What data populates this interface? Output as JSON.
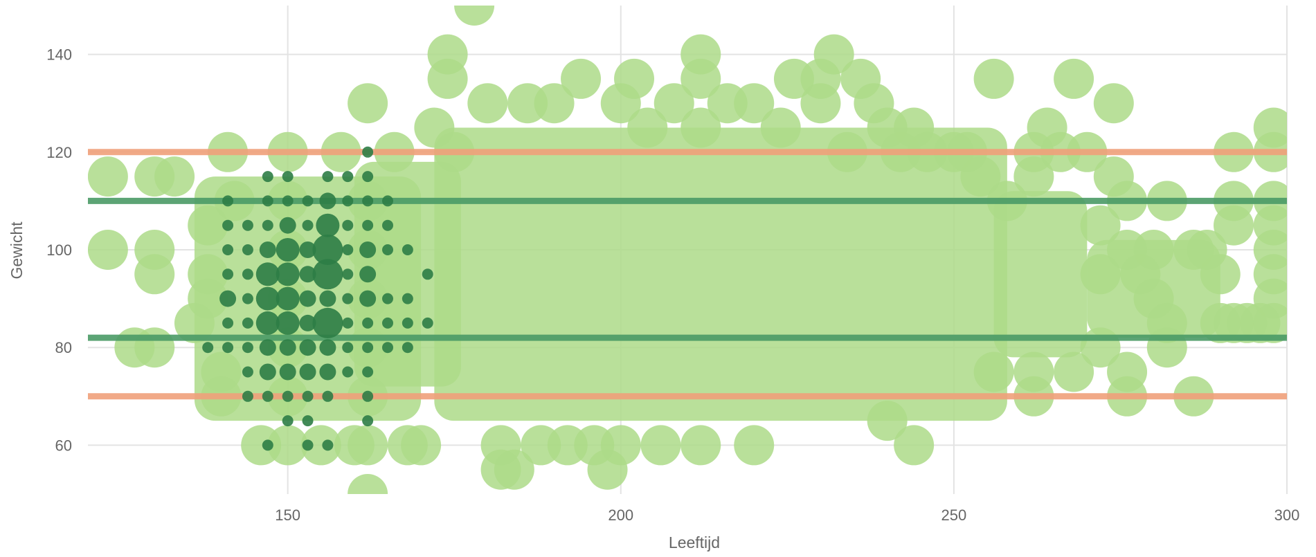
{
  "chart_data": {
    "type": "scatter",
    "title": "",
    "xlabel": "Leeftijd",
    "ylabel": "Gewicht",
    "xlim": [
      120,
      300
    ],
    "ylim": [
      50,
      150
    ],
    "x_ticks": [
      150,
      200,
      250,
      300
    ],
    "y_ticks": [
      60,
      80,
      100,
      120,
      140
    ],
    "grid": true,
    "colors": {
      "light_points": "#addb88",
      "dark_points": "#2e7d46",
      "limit_lines": "#f0a07a",
      "target_lines": "#4a9a66"
    },
    "reference_lines": [
      {
        "y": 120,
        "color": "#f0a07a"
      },
      {
        "y": 110,
        "color": "#4a9a66"
      },
      {
        "y": 82,
        "color": "#4a9a66"
      },
      {
        "y": 70,
        "color": "#f0a07a"
      }
    ],
    "series": [
      {
        "style": "light",
        "points": [
          [
            123,
            115
          ],
          [
            123,
            100
          ],
          [
            130,
            115
          ],
          [
            130,
            100
          ],
          [
            130,
            95
          ],
          [
            133,
            115
          ],
          [
            136,
            85
          ],
          [
            127,
            80
          ],
          [
            130,
            80
          ],
          [
            138,
            105
          ],
          [
            138,
            95
          ],
          [
            138,
            90
          ],
          [
            140,
            75
          ],
          [
            140,
            70
          ],
          [
            141,
            120
          ],
          [
            142,
            110
          ],
          [
            146,
            60
          ],
          [
            150,
            120
          ],
          [
            150,
            110
          ],
          [
            150,
            100
          ],
          [
            150,
            90
          ],
          [
            150,
            80
          ],
          [
            150,
            70
          ],
          [
            150,
            60
          ],
          [
            155,
            60
          ],
          [
            158,
            120
          ],
          [
            160,
            60
          ],
          [
            162,
            130
          ],
          [
            162,
            110
          ],
          [
            162,
            100
          ],
          [
            162,
            90
          ],
          [
            162,
            80
          ],
          [
            162,
            70
          ],
          [
            162,
            60
          ],
          [
            162,
            50
          ],
          [
            166,
            120
          ],
          [
            168,
            60
          ],
          [
            170,
            60
          ],
          [
            172,
            125
          ],
          [
            174,
            140
          ],
          [
            174,
            135
          ],
          [
            175,
            120
          ],
          [
            178,
            150
          ],
          [
            180,
            130
          ],
          [
            182,
            60
          ],
          [
            182,
            55
          ],
          [
            184,
            55
          ],
          [
            186,
            130
          ],
          [
            188,
            60
          ],
          [
            190,
            130
          ],
          [
            192,
            60
          ],
          [
            194,
            135
          ],
          [
            196,
            60
          ],
          [
            198,
            55
          ],
          [
            200,
            130
          ],
          [
            200,
            60
          ],
          [
            202,
            135
          ],
          [
            204,
            125
          ],
          [
            206,
            60
          ],
          [
            208,
            130
          ],
          [
            212,
            140
          ],
          [
            212,
            135
          ],
          [
            212,
            125
          ],
          [
            212,
            60
          ],
          [
            216,
            130
          ],
          [
            220,
            130
          ],
          [
            220,
            60
          ],
          [
            224,
            125
          ],
          [
            226,
            135
          ],
          [
            230,
            135
          ],
          [
            230,
            130
          ],
          [
            232,
            140
          ],
          [
            234,
            120
          ],
          [
            236,
            135
          ],
          [
            238,
            130
          ],
          [
            240,
            125
          ],
          [
            240,
            65
          ],
          [
            242,
            120
          ],
          [
            244,
            125
          ],
          [
            244,
            60
          ],
          [
            246,
            120
          ],
          [
            250,
            120
          ],
          [
            252,
            120
          ],
          [
            254,
            115
          ],
          [
            256,
            135
          ],
          [
            256,
            75
          ],
          [
            258,
            110
          ],
          [
            262,
            120
          ],
          [
            262,
            115
          ],
          [
            262,
            75
          ],
          [
            262,
            70
          ],
          [
            264,
            125
          ],
          [
            266,
            120
          ],
          [
            268,
            135
          ],
          [
            268,
            75
          ],
          [
            270,
            120
          ],
          [
            272,
            105
          ],
          [
            272,
            95
          ],
          [
            272,
            80
          ],
          [
            274,
            130
          ],
          [
            274,
            115
          ],
          [
            276,
            110
          ],
          [
            276,
            100
          ],
          [
            276,
            75
          ],
          [
            276,
            70
          ],
          [
            278,
            95
          ],
          [
            280,
            100
          ],
          [
            280,
            90
          ],
          [
            282,
            110
          ],
          [
            282,
            85
          ],
          [
            282,
            80
          ],
          [
            286,
            100
          ],
          [
            286,
            70
          ],
          [
            288,
            100
          ],
          [
            290,
            95
          ],
          [
            290,
            85
          ],
          [
            292,
            120
          ],
          [
            292,
            110
          ],
          [
            292,
            105
          ],
          [
            292,
            85
          ],
          [
            294,
            85
          ],
          [
            296,
            85
          ],
          [
            298,
            125
          ],
          [
            298,
            120
          ],
          [
            298,
            110
          ],
          [
            298,
            105
          ],
          [
            298,
            100
          ],
          [
            298,
            95
          ],
          [
            298,
            90
          ],
          [
            298,
            85
          ]
        ]
      },
      {
        "style": "dark",
        "points": [
          [
            138,
            80,
            1
          ],
          [
            141,
            110,
            1
          ],
          [
            141,
            105,
            1
          ],
          [
            141,
            100,
            1
          ],
          [
            141,
            95,
            1
          ],
          [
            141,
            90,
            2
          ],
          [
            141,
            85,
            1
          ],
          [
            141,
            80,
            1
          ],
          [
            144,
            105,
            1
          ],
          [
            144,
            100,
            1
          ],
          [
            144,
            95,
            1
          ],
          [
            144,
            90,
            1
          ],
          [
            144,
            85,
            1
          ],
          [
            144,
            80,
            1
          ],
          [
            144,
            75,
            1
          ],
          [
            144,
            70,
            1
          ],
          [
            147,
            115,
            1
          ],
          [
            147,
            110,
            1
          ],
          [
            147,
            105,
            1
          ],
          [
            147,
            100,
            2
          ],
          [
            147,
            95,
            3
          ],
          [
            147,
            90,
            3
          ],
          [
            147,
            85,
            3
          ],
          [
            147,
            80,
            2
          ],
          [
            147,
            75,
            2
          ],
          [
            147,
            70,
            1
          ],
          [
            147,
            60,
            1
          ],
          [
            150,
            115,
            1
          ],
          [
            150,
            110,
            1
          ],
          [
            150,
            105,
            2
          ],
          [
            150,
            100,
            3
          ],
          [
            150,
            95,
            3
          ],
          [
            150,
            90,
            3
          ],
          [
            150,
            85,
            3
          ],
          [
            150,
            80,
            2
          ],
          [
            150,
            75,
            2
          ],
          [
            150,
            70,
            1
          ],
          [
            150,
            65,
            1
          ],
          [
            153,
            110,
            1
          ],
          [
            153,
            105,
            1
          ],
          [
            153,
            100,
            2
          ],
          [
            153,
            95,
            2
          ],
          [
            153,
            90,
            2
          ],
          [
            153,
            85,
            2
          ],
          [
            153,
            80,
            2
          ],
          [
            153,
            75,
            2
          ],
          [
            153,
            70,
            1
          ],
          [
            153,
            65,
            1
          ],
          [
            153,
            60,
            1
          ],
          [
            156,
            115,
            1
          ],
          [
            156,
            110,
            2
          ],
          [
            156,
            105,
            3
          ],
          [
            156,
            100,
            4
          ],
          [
            156,
            95,
            4
          ],
          [
            156,
            90,
            2
          ],
          [
            156,
            85,
            4
          ],
          [
            156,
            80,
            2
          ],
          [
            156,
            75,
            2
          ],
          [
            156,
            70,
            1
          ],
          [
            156,
            60,
            1
          ],
          [
            159,
            115,
            1
          ],
          [
            159,
            110,
            1
          ],
          [
            159,
            105,
            1
          ],
          [
            159,
            100,
            1
          ],
          [
            159,
            95,
            1
          ],
          [
            159,
            90,
            1
          ],
          [
            159,
            85,
            1
          ],
          [
            159,
            80,
            1
          ],
          [
            159,
            75,
            1
          ],
          [
            162,
            120,
            1
          ],
          [
            162,
            115,
            1
          ],
          [
            162,
            110,
            1
          ],
          [
            162,
            105,
            1
          ],
          [
            162,
            100,
            2
          ],
          [
            162,
            95,
            2
          ],
          [
            162,
            90,
            2
          ],
          [
            162,
            85,
            1
          ],
          [
            162,
            80,
            1
          ],
          [
            162,
            75,
            1
          ],
          [
            162,
            70,
            1
          ],
          [
            162,
            65,
            1
          ],
          [
            165,
            110,
            1
          ],
          [
            165,
            105,
            1
          ],
          [
            165,
            100,
            1
          ],
          [
            165,
            90,
            1
          ],
          [
            165,
            85,
            1
          ],
          [
            165,
            80,
            1
          ],
          [
            168,
            100,
            1
          ],
          [
            168,
            90,
            1
          ],
          [
            168,
            85,
            1
          ],
          [
            168,
            80,
            1
          ],
          [
            171,
            95,
            1
          ],
          [
            171,
            85,
            1
          ]
        ]
      }
    ]
  }
}
